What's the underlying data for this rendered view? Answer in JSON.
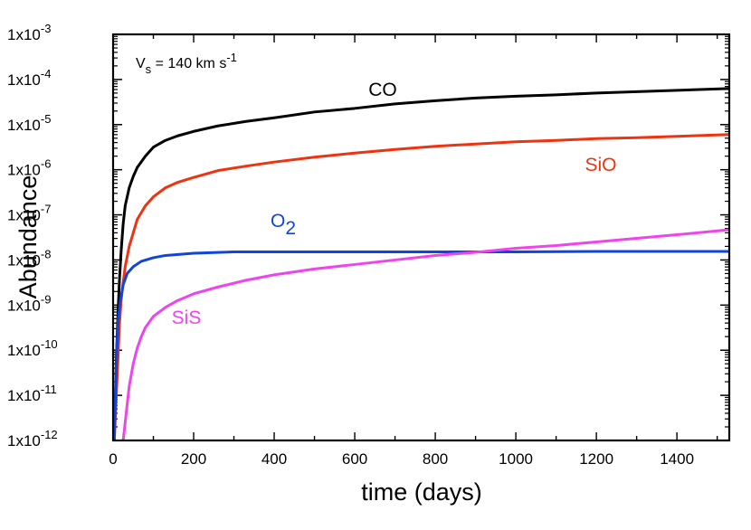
{
  "chart_data": {
    "type": "line",
    "title": "",
    "xlabel": "time (days)",
    "ylabel": "Abundance",
    "xlim": [
      0,
      1530
    ],
    "ylim_log10": [
      -12,
      -3
    ],
    "yscale": "log",
    "x_ticks": [
      0,
      200,
      400,
      600,
      800,
      1000,
      1200,
      1400
    ],
    "y_ticks": [
      {
        "label": "1x10",
        "exp": "-3",
        "value": -3
      },
      {
        "label": "1x10",
        "exp": "-4",
        "value": -4
      },
      {
        "label": "1x10",
        "exp": "-5",
        "value": -5
      },
      {
        "label": "1x10",
        "exp": "-6",
        "value": -6
      },
      {
        "label": "1x10",
        "exp": "-7",
        "value": -7
      },
      {
        "label": "1x10",
        "exp": "-8",
        "value": -8
      },
      {
        "label": "1x10",
        "exp": "-9",
        "value": -9
      },
      {
        "label": "1x10",
        "exp": "-10",
        "value": -10
      },
      {
        "label": "1x10",
        "exp": "-11",
        "value": -11
      },
      {
        "label": "1x10",
        "exp": "-12",
        "value": -12
      }
    ],
    "annotation": {
      "prefix": "V",
      "sub": "s",
      "mid": " = 140 km s",
      "sup": "-1"
    },
    "series": [
      {
        "name": "CO",
        "label": "CO",
        "label_sub": "",
        "color": "#000000",
        "points": [
          [
            2,
            -12
          ],
          [
            5,
            -11.3
          ],
          [
            8,
            -10.2
          ],
          [
            12,
            -9.2
          ],
          [
            16,
            -8.4
          ],
          [
            20,
            -7.8
          ],
          [
            25,
            -7.2
          ],
          [
            30,
            -6.8
          ],
          [
            40,
            -6.4
          ],
          [
            50,
            -6.15
          ],
          [
            60,
            -5.95
          ],
          [
            80,
            -5.7
          ],
          [
            100,
            -5.5
          ],
          [
            130,
            -5.35
          ],
          [
            160,
            -5.25
          ],
          [
            200,
            -5.15
          ],
          [
            260,
            -5.03
          ],
          [
            330,
            -4.93
          ],
          [
            400,
            -4.85
          ],
          [
            500,
            -4.72
          ],
          [
            600,
            -4.64
          ],
          [
            700,
            -4.54
          ],
          [
            800,
            -4.47
          ],
          [
            900,
            -4.41
          ],
          [
            1000,
            -4.37
          ],
          [
            1100,
            -4.34
          ],
          [
            1200,
            -4.3
          ],
          [
            1300,
            -4.27
          ],
          [
            1400,
            -4.24
          ],
          [
            1530,
            -4.2
          ]
        ]
      },
      {
        "name": "SiO",
        "label": "SiO",
        "label_sub": "",
        "color": "#ee3311",
        "points": [
          [
            3,
            -12
          ],
          [
            8,
            -11
          ],
          [
            12,
            -10.2
          ],
          [
            16,
            -9.4
          ],
          [
            20,
            -8.9
          ],
          [
            25,
            -8.5
          ],
          [
            30,
            -8.15
          ],
          [
            40,
            -7.7
          ],
          [
            50,
            -7.4
          ],
          [
            60,
            -7.1
          ],
          [
            80,
            -6.8
          ],
          [
            100,
            -6.6
          ],
          [
            130,
            -6.4
          ],
          [
            160,
            -6.28
          ],
          [
            200,
            -6.17
          ],
          [
            260,
            -6.02
          ],
          [
            330,
            -5.92
          ],
          [
            400,
            -5.83
          ],
          [
            500,
            -5.72
          ],
          [
            600,
            -5.63
          ],
          [
            700,
            -5.55
          ],
          [
            800,
            -5.48
          ],
          [
            900,
            -5.43
          ],
          [
            1000,
            -5.38
          ],
          [
            1100,
            -5.35
          ],
          [
            1200,
            -5.31
          ],
          [
            1300,
            -5.29
          ],
          [
            1400,
            -5.26
          ],
          [
            1530,
            -5.22
          ]
        ]
      },
      {
        "name": "O2",
        "label": "O",
        "label_sub": "2",
        "color": "#1144dd",
        "points": [
          [
            3,
            -12
          ],
          [
            6,
            -11
          ],
          [
            9,
            -10
          ],
          [
            13,
            -9.3
          ],
          [
            18,
            -8.9
          ],
          [
            25,
            -8.55
          ],
          [
            35,
            -8.3
          ],
          [
            50,
            -8.15
          ],
          [
            70,
            -8.03
          ],
          [
            100,
            -7.95
          ],
          [
            130,
            -7.9
          ],
          [
            200,
            -7.85
          ],
          [
            300,
            -7.82
          ],
          [
            400,
            -7.82
          ],
          [
            600,
            -7.82
          ],
          [
            800,
            -7.82
          ],
          [
            1000,
            -7.82
          ],
          [
            1200,
            -7.81
          ],
          [
            1400,
            -7.81
          ],
          [
            1530,
            -7.81
          ]
        ]
      },
      {
        "name": "SiS",
        "label": "SiS",
        "label_sub": "",
        "color": "#ee44ee",
        "points": [
          [
            25,
            -12
          ],
          [
            30,
            -11.6
          ],
          [
            35,
            -11.2
          ],
          [
            40,
            -10.8
          ],
          [
            50,
            -10.3
          ],
          [
            60,
            -9.95
          ],
          [
            70,
            -9.7
          ],
          [
            80,
            -9.5
          ],
          [
            100,
            -9.25
          ],
          [
            130,
            -9.05
          ],
          [
            160,
            -8.9
          ],
          [
            200,
            -8.75
          ],
          [
            260,
            -8.6
          ],
          [
            330,
            -8.45
          ],
          [
            400,
            -8.33
          ],
          [
            500,
            -8.2
          ],
          [
            600,
            -8.1
          ],
          [
            700,
            -8.0
          ],
          [
            800,
            -7.9
          ],
          [
            900,
            -7.83
          ],
          [
            1000,
            -7.74
          ],
          [
            1100,
            -7.68
          ],
          [
            1200,
            -7.6
          ],
          [
            1300,
            -7.52
          ],
          [
            1400,
            -7.44
          ],
          [
            1530,
            -7.33
          ]
        ]
      }
    ]
  }
}
